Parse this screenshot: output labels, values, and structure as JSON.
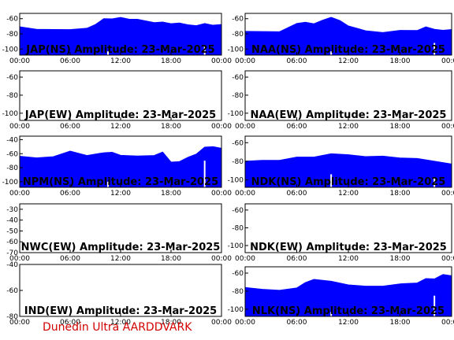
{
  "footer": "Dunedin Ultra AARDDVARK",
  "colors": {
    "fill": "#0000ff",
    "frame": "#000000",
    "footer": "#d40000",
    "spike": "#ffffff"
  },
  "chart_data": [
    {
      "type": "area",
      "title": "JAP(NS) Amplitude: 23-Mar-2025",
      "ylim": [
        -108,
        -53
      ],
      "yticks": [
        -60,
        -80,
        -100
      ],
      "xticks": [
        "00:00",
        "06:00",
        "12:00",
        "18:00",
        "00:00"
      ],
      "has_data": true,
      "series": [
        {
          "x": [
            0,
            2,
            4,
            6,
            8,
            9,
            10,
            11,
            12,
            13,
            14,
            15,
            16,
            17,
            18,
            19,
            20,
            21,
            22,
            23,
            24
          ],
          "values": [
            -72,
            -74,
            -73,
            -75,
            -72,
            -69,
            -60,
            -59,
            -59,
            -60,
            -62,
            -63,
            -64,
            -65,
            -66,
            -67,
            -68,
            -68,
            -67,
            -68,
            -69
          ]
        }
      ],
      "spikes": [
        {
          "x": 10.5,
          "y": -103
        },
        {
          "x": 22.0,
          "y": -97
        }
      ]
    },
    {
      "type": "area",
      "title": "NAA(NS) Amplitude: 23-Mar-2025",
      "ylim": [
        -108,
        -53
      ],
      "yticks": [
        -60,
        -80,
        -100
      ],
      "xticks": [
        "00:00",
        "06:00",
        "12:00",
        "18:00",
        "00:00"
      ],
      "has_data": true,
      "series": [
        {
          "x": [
            0,
            2,
            4,
            6,
            7,
            8,
            9,
            10,
            11,
            12,
            13,
            14,
            16,
            18,
            20,
            21,
            22,
            23,
            24
          ],
          "values": [
            -78,
            -77,
            -76,
            -67,
            -64,
            -68,
            -62,
            -57,
            -63,
            -69,
            -74,
            -76,
            -77,
            -76,
            -75,
            -72,
            -74,
            -74,
            -75
          ]
        }
      ],
      "spikes": [
        {
          "x": 10.0,
          "y": -103
        },
        {
          "x": 22.0,
          "y": -92
        }
      ]
    },
    {
      "type": "area",
      "title": "JAP(EW) Amplitude: 23-Mar-2025",
      "ylim": [
        -108,
        -53
      ],
      "yticks": [
        -60,
        -80,
        -100
      ],
      "xticks": [
        "00:00",
        "06:00",
        "12:00",
        "18:00",
        "00:00"
      ],
      "has_data": false,
      "series": [],
      "spikes": []
    },
    {
      "type": "area",
      "title": "NAA(EW) Amplitude: 23-Mar-2025",
      "ylim": [
        -108,
        -53
      ],
      "yticks": [
        -60,
        -80,
        -100
      ],
      "xticks": [
        "00:00",
        "06:00",
        "12:00",
        "18:00",
        "00:00"
      ],
      "has_data": false,
      "series": [],
      "spikes": []
    },
    {
      "type": "area",
      "title": "NPM(NS) Amplitude: 23-Mar-2025",
      "ylim": [
        -108,
        -35
      ],
      "yticks": [
        -40,
        -60,
        -80,
        -100
      ],
      "xticks": [
        "00:00",
        "06:00",
        "12:00",
        "18:00",
        "00:00"
      ],
      "has_data": true,
      "series": [
        {
          "x": [
            0,
            2,
            4,
            6,
            8,
            10,
            11,
            12,
            14,
            16,
            17,
            18,
            19,
            20,
            21,
            22,
            23,
            24
          ],
          "values": [
            -65,
            -66,
            -63,
            -57,
            -62,
            -60,
            -58,
            -61,
            -64,
            -62,
            -59,
            -72,
            -70,
            -66,
            -60,
            -52,
            -50,
            -51
          ]
        }
      ],
      "spikes": [
        {
          "x": 10.5,
          "y": -100
        },
        {
          "x": 22.0,
          "y": -70
        }
      ]
    },
    {
      "type": "area",
      "title": "NDK(NS) Amplitude: 23-Mar-2025",
      "ylim": [
        -108,
        -53
      ],
      "yticks": [
        -60,
        -80,
        -100
      ],
      "xticks": [
        "00:00",
        "06:00",
        "12:00",
        "18:00",
        "00:00"
      ],
      "has_data": true,
      "series": [
        {
          "x": [
            0,
            2,
            4,
            6,
            8,
            10,
            12,
            14,
            16,
            18,
            20,
            22,
            24
          ],
          "values": [
            -81,
            -79,
            -78,
            -76,
            -75,
            -73,
            -73,
            -74,
            -75,
            -76,
            -78,
            -80,
            -82
          ]
        }
      ],
      "spikes": [
        {
          "x": 10.0,
          "y": -94
        },
        {
          "x": 22.0,
          "y": -98
        }
      ]
    },
    {
      "type": "area",
      "title": "NWC(EW) Amplitude: 23-Mar-2025",
      "ylim": [
        -70,
        -25
      ],
      "yticks": [
        -30,
        -40,
        -50,
        -60,
        -70
      ],
      "xticks": [
        "00:00",
        "06:00",
        "12:00",
        "18:00",
        "00:00"
      ],
      "has_data": false,
      "series": [],
      "spikes": []
    },
    {
      "type": "area",
      "title": "NDK(EW) Amplitude: 23-Mar-2025",
      "ylim": [
        -108,
        -53
      ],
      "yticks": [
        -60,
        -80,
        -100
      ],
      "xticks": [
        "00:00",
        "06:00",
        "12:00",
        "18:00",
        "00:00"
      ],
      "has_data": false,
      "series": [],
      "spikes": []
    },
    {
      "type": "area",
      "title": "IND(EW) Amplitude: 23-Mar-2025",
      "ylim": [
        -80,
        -40
      ],
      "yticks": [
        -40,
        -60,
        -80
      ],
      "xticks": [
        "00:00",
        "06:00",
        "12:00",
        "18:00",
        "00:00"
      ],
      "has_data": false,
      "series": [],
      "spikes": []
    },
    {
      "type": "area",
      "title": "NLK(NS) Amplitude: 23-Mar-2025",
      "ylim": [
        -108,
        -53
      ],
      "yticks": [
        -60,
        -80,
        -100
      ],
      "xticks": [
        "00:00",
        "06:00",
        "12:00",
        "18:00",
        "00:00"
      ],
      "has_data": true,
      "series": [
        {
          "x": [
            0,
            2,
            4,
            6,
            7,
            8,
            10,
            12,
            14,
            16,
            18,
            20,
            21,
            22,
            23,
            24
          ],
          "values": [
            -77,
            -78,
            -78,
            -77,
            -70,
            -68,
            -69,
            -72,
            -75,
            -74,
            -73,
            -71,
            -65,
            -67,
            -61,
            -64
          ]
        }
      ],
      "spikes": [
        {
          "x": 10.0,
          "y": -103
        },
        {
          "x": 22.0,
          "y": -85
        }
      ]
    }
  ]
}
